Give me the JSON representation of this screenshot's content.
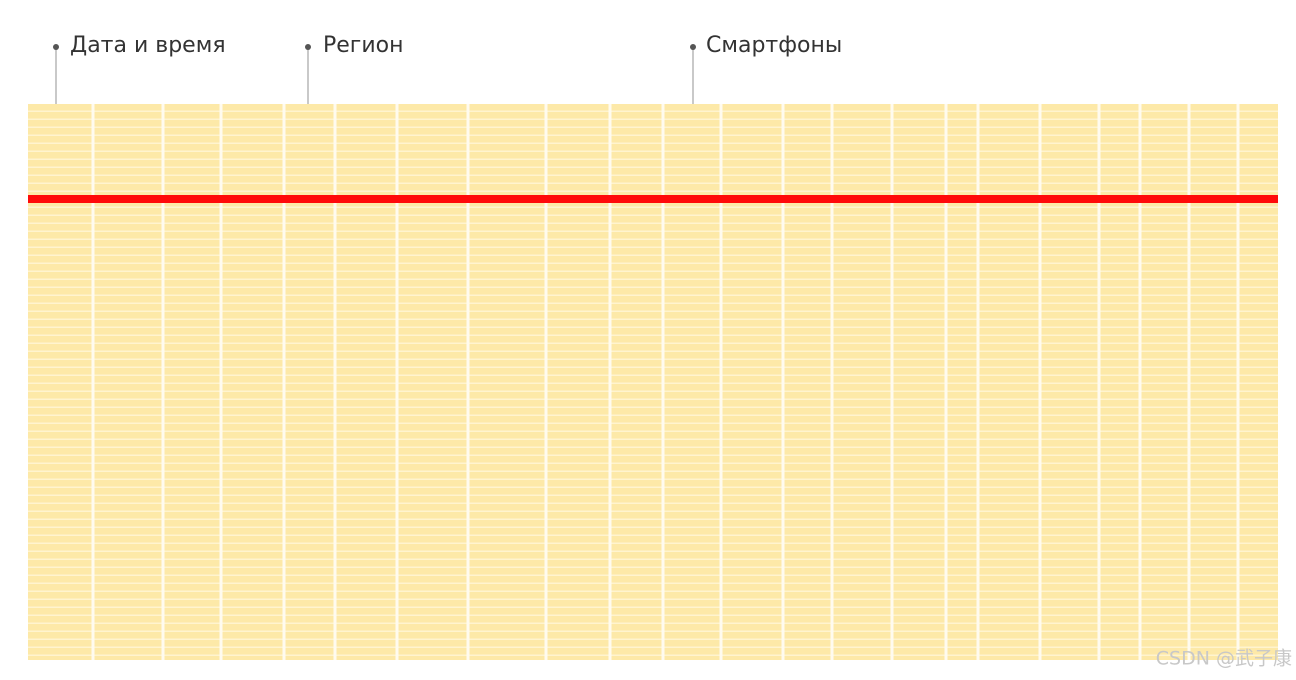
{
  "columns": [
    {
      "label": "Дата и время"
    },
    {
      "label": "Регион"
    },
    {
      "label": "Смартфоны"
    }
  ],
  "watermark": "CSDN @武子康"
}
